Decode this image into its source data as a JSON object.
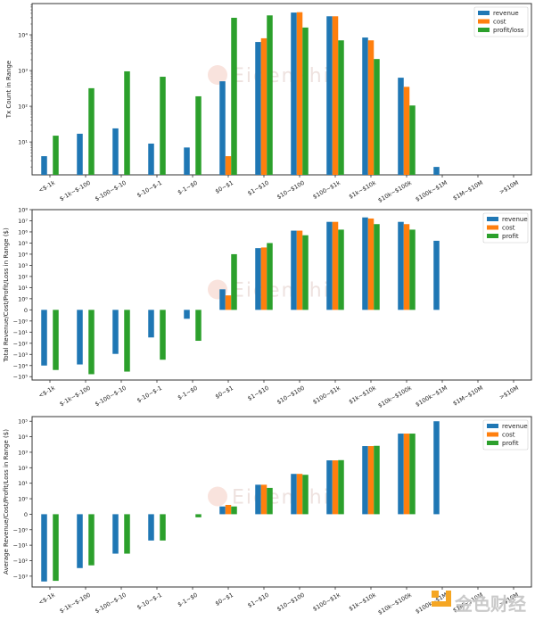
{
  "colors": {
    "revenue": "#1f77b4",
    "cost": "#ff7f0e",
    "profit": "#2ca02c",
    "watermark_logo": "#f5a623"
  },
  "watermarks": {
    "center": "EigenPhi",
    "corner": "金色财经"
  },
  "chart_data": [
    {
      "type": "bar",
      "title": "",
      "xlabel": "",
      "ylabel": "Tx Count in Range",
      "yscale": "log",
      "ylim": [
        1.2,
        75000
      ],
      "yticks": [
        {
          "value": 10,
          "label": "10¹"
        },
        {
          "value": 100,
          "label": "10²"
        },
        {
          "value": 1000,
          "label": "10³"
        },
        {
          "value": 10000,
          "label": "10⁴"
        }
      ],
      "legend_position": "top-right",
      "categories": [
        "<$-1k",
        "$-1k~$-100",
        "$-100~$-10",
        "$-10~$-1",
        "$-1~$0",
        "$0~$1",
        "$1~$10",
        "$10~$100",
        "$100~$1k",
        "$1k~$10k",
        "$10k~$100k",
        "$100k~$1M",
        "$1M~$10M",
        ">$10M"
      ],
      "series": [
        {
          "name": "revenue",
          "values": [
            4,
            17,
            24,
            9,
            7,
            500,
            6300,
            42000,
            33000,
            8400,
            630,
            2,
            null,
            null
          ]
        },
        {
          "name": "cost",
          "values": [
            null,
            null,
            null,
            null,
            null,
            4,
            8000,
            43000,
            33000,
            7000,
            350,
            null,
            null,
            null
          ]
        },
        {
          "name": "profit/loss",
          "values": [
            15,
            320,
            950,
            670,
            190,
            30000,
            35000,
            16000,
            7000,
            2100,
            105,
            null,
            null,
            null
          ]
        }
      ]
    },
    {
      "type": "bar",
      "title": "",
      "xlabel": "",
      "ylabel": "Total Revenue/Cost/Profit/Loss in Range ($)",
      "yscale": "symlog",
      "ylim": [
        -200000,
        100000000
      ],
      "yticks": [
        {
          "value": 100000000,
          "label": "10⁸"
        },
        {
          "value": 10000000,
          "label": "10⁷"
        },
        {
          "value": 1000000,
          "label": "10⁶"
        },
        {
          "value": 100000,
          "label": "10⁵"
        },
        {
          "value": 10000,
          "label": "10⁴"
        },
        {
          "value": 1000,
          "label": "10³"
        },
        {
          "value": 100,
          "label": "10²"
        },
        {
          "value": 10,
          "label": "10¹"
        },
        {
          "value": 1,
          "label": "10⁰"
        },
        {
          "value": 0,
          "label": "0"
        },
        {
          "value": -1,
          "label": "−10⁰"
        },
        {
          "value": -10,
          "label": "−10¹"
        },
        {
          "value": -100,
          "label": "−10²"
        },
        {
          "value": -1000,
          "label": "−10³"
        },
        {
          "value": -10000,
          "label": "−10⁴"
        },
        {
          "value": -100000,
          "label": "−10⁵"
        }
      ],
      "legend_position": "top-right",
      "categories": [
        "<$-1k",
        "$-1k~$-100",
        "$-100~$-10",
        "$-10~$-1",
        "$-1~$0",
        "$0~$1",
        "$1~$10",
        "$10~$100",
        "$100~$1k",
        "$1k~$10k",
        "$10k~$100k",
        "$100k~$1M",
        "$1M~$10M",
        ">$10M"
      ],
      "series": [
        {
          "name": "revenue",
          "values": [
            -10000,
            -8000,
            -900,
            -30,
            -0.8,
            7,
            35000,
            1300000,
            8000000,
            20000000,
            8000000,
            160000,
            null,
            null
          ]
        },
        {
          "name": "cost",
          "values": [
            null,
            null,
            null,
            null,
            null,
            2,
            40000,
            1300000,
            8000000,
            16000000,
            5000000,
            null,
            null,
            null
          ]
        },
        {
          "name": "profit",
          "values": [
            -25000,
            -60000,
            -35000,
            -3000,
            -60,
            10000,
            100000,
            500000,
            1600000,
            5000000,
            1600000,
            null,
            null,
            null
          ]
        }
      ]
    },
    {
      "type": "bar",
      "title": "",
      "xlabel": "",
      "ylabel": "Average Revenue/Cost/Profit/Loss in Range ($)",
      "yscale": "symlog",
      "ylim": [
        -5000,
        200000
      ],
      "yticks": [
        {
          "value": 100000,
          "label": "10⁵"
        },
        {
          "value": 10000,
          "label": "10⁴"
        },
        {
          "value": 1000,
          "label": "10³"
        },
        {
          "value": 100,
          "label": "10²"
        },
        {
          "value": 10,
          "label": "10¹"
        },
        {
          "value": 1,
          "label": "10⁰"
        },
        {
          "value": 0,
          "label": "0"
        },
        {
          "value": -1,
          "label": "−10⁰"
        },
        {
          "value": -10,
          "label": "−10¹"
        },
        {
          "value": -100,
          "label": "−10²"
        },
        {
          "value": -1000,
          "label": "−10³"
        }
      ],
      "legend_position": "top-right",
      "categories": [
        "<$-1k",
        "$-1k~$-100",
        "$-100~$-10",
        "$-10~$-1",
        "$-1~$0",
        "$0~$1",
        "$1~$10",
        "$10~$100",
        "$100~$1k",
        "$1k~$10k",
        "$10k~$100k",
        "$100k~$1M",
        "$1M~$10M",
        ">$10M"
      ],
      "series": [
        {
          "name": "revenue",
          "values": [
            -2200,
            -300,
            -35,
            -5,
            null,
            0.5,
            8,
            40,
            300,
            2500,
            16000,
            100000,
            null,
            null
          ]
        },
        {
          "name": "cost",
          "values": [
            null,
            null,
            null,
            null,
            null,
            0.6,
            8,
            40,
            300,
            2500,
            16000,
            null,
            null,
            null
          ]
        },
        {
          "name": "profit",
          "values": [
            -2000,
            -200,
            -35,
            -5,
            -0.2,
            0.5,
            5,
            35,
            310,
            2600,
            16000,
            null,
            null,
            null
          ]
        }
      ]
    }
  ]
}
